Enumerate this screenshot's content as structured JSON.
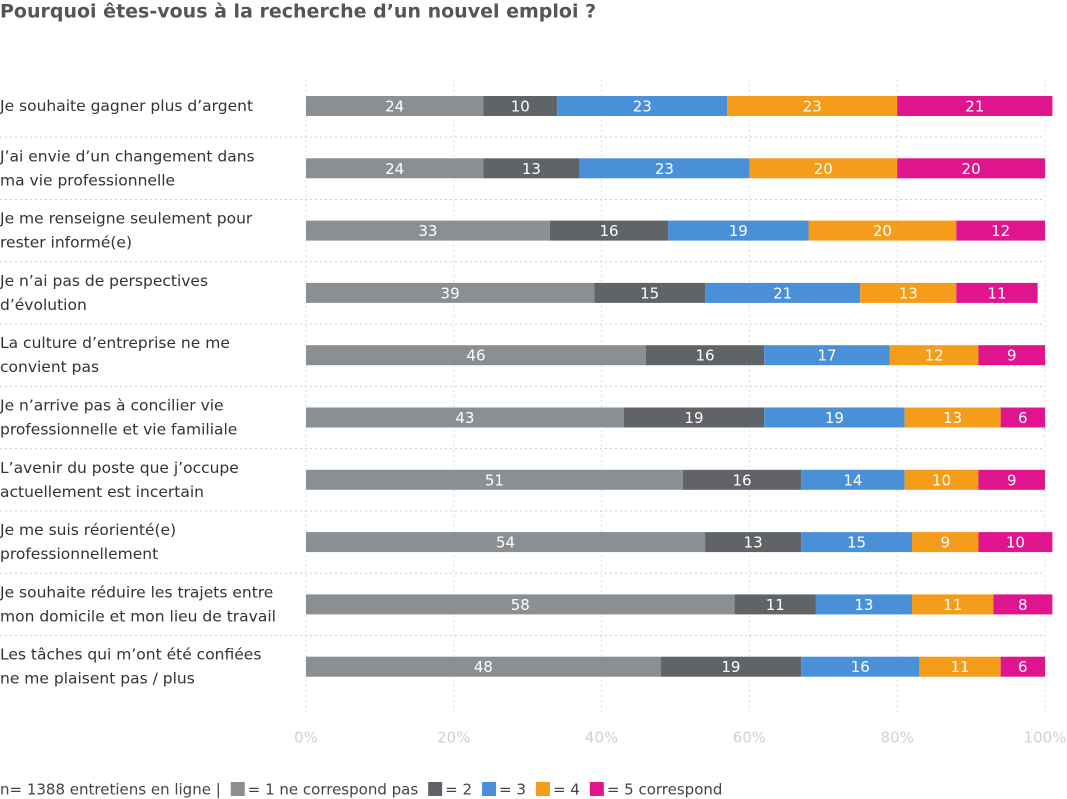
{
  "chart_data": {
    "type": "stacked-bar-horizontal",
    "title": "Pourquoi êtes-vous à la recherche d’un nouvel emploi ?",
    "note": "n= 1388 entretiens en ligne  |",
    "categories": [
      "Je souhaite gagner plus d’argent",
      "J’ai envie d’un changement dans\nma vie professionnelle",
      "Je me renseigne seulement pour\nrester informé(e)",
      "Je n’ai pas de perspectives\nd’évolution",
      "La culture d’entreprise ne me\nconvient pas",
      "Je n’arrive pas à concilier vie\nprofessionnelle et vie familiale",
      "L’avenir du poste que j’occupe\nactuellement est incertain",
      "Je me suis réorienté(e)\nprofessionnellement",
      "Je souhaite réduire les trajets entre\nmon domicile et mon lieu de travail",
      "Les tâches qui m’ont été confiées\nne me plaisent pas / plus"
    ],
    "series": [
      {
        "name": "= 1 ne correspond pas",
        "color": "#8a8f94",
        "values": [
          24,
          24,
          33,
          39,
          46,
          43,
          51,
          54,
          58,
          48
        ]
      },
      {
        "name": "= 2",
        "color": "#606468",
        "values": [
          10,
          13,
          16,
          15,
          16,
          19,
          16,
          13,
          11,
          19
        ]
      },
      {
        "name": "= 3",
        "color": "#4a90d9",
        "values": [
          23,
          23,
          19,
          21,
          17,
          19,
          14,
          15,
          13,
          16
        ]
      },
      {
        "name": "= 4",
        "color": "#f59c1a",
        "values": [
          23,
          20,
          20,
          13,
          12,
          13,
          10,
          9,
          11,
          11
        ]
      },
      {
        "name": "= 5 correspond",
        "color": "#e0148c",
        "values": [
          21,
          20,
          12,
          11,
          9,
          6,
          9,
          10,
          8,
          6
        ]
      }
    ],
    "xlim": [
      0,
      100
    ],
    "xticks": [
      {
        "value": 0,
        "label": "0%"
      },
      {
        "value": 20,
        "label": "20%"
      },
      {
        "value": 40,
        "label": "40%"
      },
      {
        "value": 60,
        "label": "60%"
      },
      {
        "value": 80,
        "label": "80%"
      },
      {
        "value": 100,
        "label": "100%"
      }
    ],
    "grid": true
  }
}
